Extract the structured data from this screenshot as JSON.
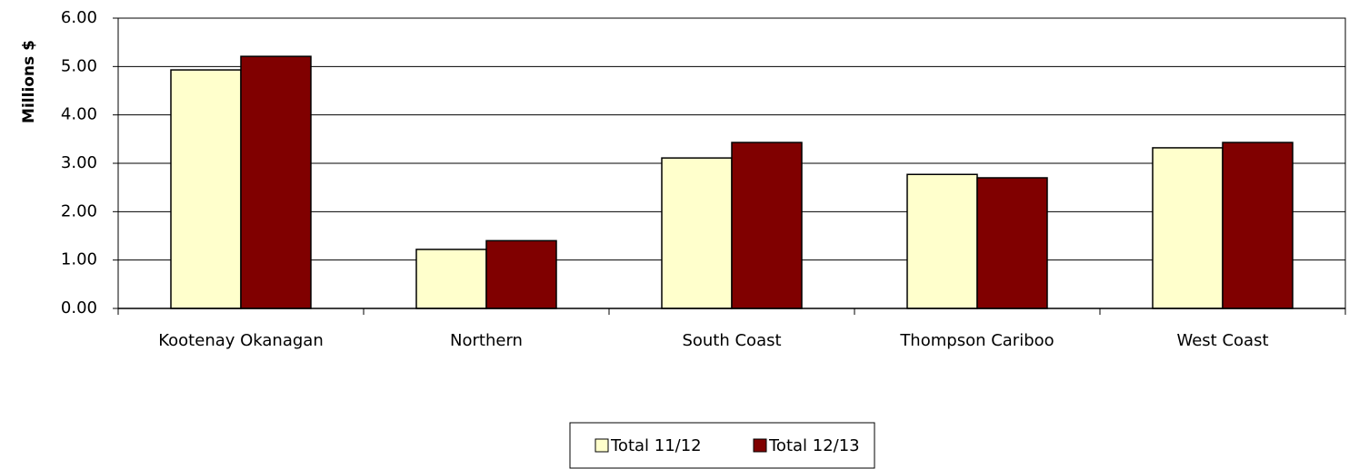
{
  "chart_data": {
    "type": "bar",
    "y_label": "Millions $",
    "categories": [
      "Kootenay Okanagan",
      "Northern",
      "South Coast",
      "Thompson Cariboo",
      "West Coast"
    ],
    "series": [
      {
        "name": "Total 11/12",
        "color": "#ffffcc",
        "values": [
          4.93,
          1.22,
          3.11,
          2.77,
          3.32
        ]
      },
      {
        "name": "Total 12/13",
        "color": "#800000",
        "values": [
          5.21,
          1.4,
          3.43,
          2.7,
          3.43
        ]
      }
    ],
    "ylim": [
      0,
      6
    ],
    "yticks": [
      {
        "value": 0,
        "label": "0.00"
      },
      {
        "value": 1,
        "label": "1.00"
      },
      {
        "value": 2,
        "label": "2.00"
      },
      {
        "value": 3,
        "label": "3.00"
      },
      {
        "value": 4,
        "label": "4.00"
      },
      {
        "value": 5,
        "label": "5.00"
      },
      {
        "value": 6,
        "label": "6.00"
      }
    ],
    "grid": true,
    "legend": "bottom"
  }
}
